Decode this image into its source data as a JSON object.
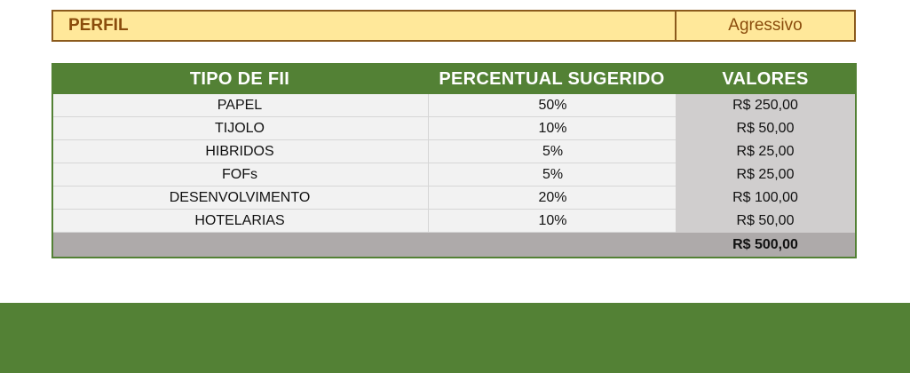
{
  "profile": {
    "label": "PERFIL",
    "value": "Agressivo"
  },
  "table": {
    "headers": [
      "TIPO DE FII",
      "PERCENTUAL SUGERIDO",
      "VALORES"
    ],
    "rows": [
      {
        "tipo": "PAPEL",
        "percentual": "50%",
        "valor": "R$ 250,00"
      },
      {
        "tipo": "TIJOLO",
        "percentual": "10%",
        "valor": "R$ 50,00"
      },
      {
        "tipo": "HIBRIDOS",
        "percentual": "5%",
        "valor": "R$ 25,00"
      },
      {
        "tipo": "FOFs",
        "percentual": "5%",
        "valor": "R$ 25,00"
      },
      {
        "tipo": "DESENVOLVIMENTO",
        "percentual": "20%",
        "valor": "R$ 100,00"
      },
      {
        "tipo": "HOTELARIAS",
        "percentual": "10%",
        "valor": "R$ 50,00"
      }
    ],
    "total": "R$ 500,00"
  },
  "colors": {
    "green": "#538135",
    "profile_bg": "#ffe89a",
    "profile_border": "#8b5a1c",
    "values_bg": "#d0cece",
    "total_bg": "#aeaaaa"
  }
}
